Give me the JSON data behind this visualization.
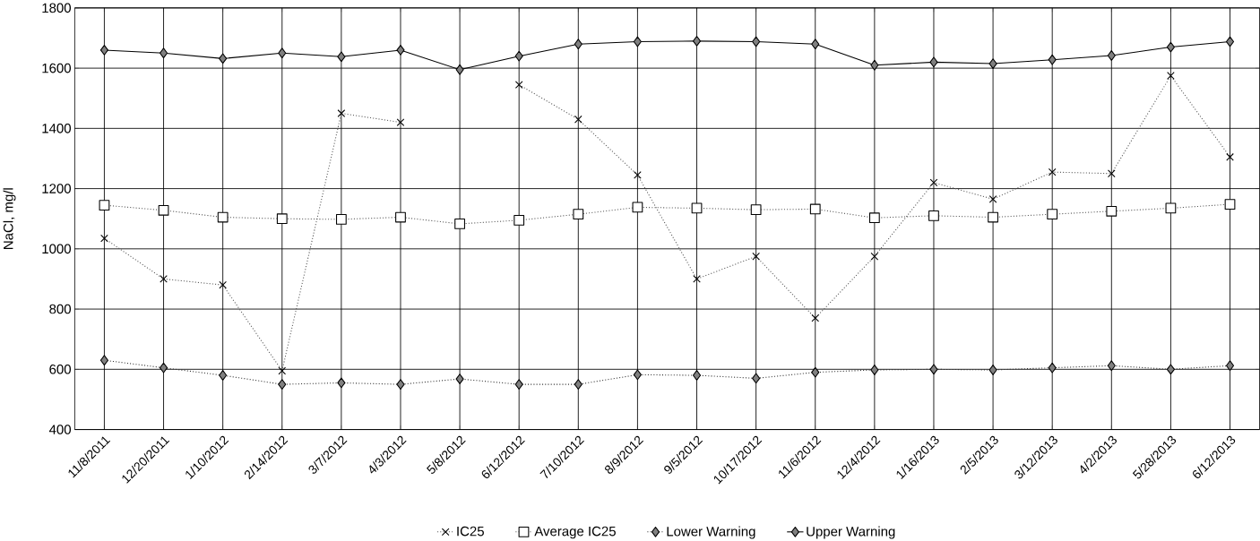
{
  "chart_data": {
    "type": "line",
    "ylabel": "NaCl, mg/l",
    "categories": [
      "11/8/2011",
      "12/20/2011",
      "1/10/2012",
      "2/14/2012",
      "3/7/2012",
      "4/3/2012",
      "5/8/2012",
      "6/12/2012",
      "7/10/2012",
      "8/9/2012",
      "9/5/2012",
      "10/17/2012",
      "11/6/2012",
      "12/4/2012",
      "1/16/2013",
      "2/5/2013",
      "3/12/2013",
      "4/2/2013",
      "5/28/2013",
      "6/12/2013"
    ],
    "series": [
      {
        "name": "IC25",
        "color": "#555555",
        "marker": "cross",
        "line_style": "dotted",
        "values": [
          1035,
          900,
          880,
          595,
          1450,
          1420,
          null,
          1545,
          1430,
          1245,
          900,
          975,
          770,
          975,
          1220,
          1165,
          1255,
          1250,
          1575,
          1305
        ]
      },
      {
        "name": "Average IC25",
        "color": "#555555",
        "marker": "square",
        "line_style": "dotted",
        "values": [
          1145,
          1128,
          1105,
          1100,
          1098,
          1105,
          1083,
          1095,
          1115,
          1138,
          1135,
          1130,
          1132,
          1103,
          1110,
          1105,
          1115,
          1125,
          1135,
          1148
        ]
      },
      {
        "name": "Lower Warning",
        "color": "#333333",
        "marker": "diamond",
        "line_style": "dotted",
        "values": [
          630,
          605,
          580,
          550,
          555,
          550,
          568,
          550,
          550,
          582,
          580,
          570,
          590,
          598,
          600,
          598,
          605,
          612,
          600,
          612
        ]
      },
      {
        "name": "Upper Warning",
        "color": "#000000",
        "marker": "diamond",
        "line_style": "solid",
        "values": [
          1660,
          1650,
          1632,
          1650,
          1638,
          1660,
          1595,
          1640,
          1680,
          1688,
          1690,
          1688,
          1680,
          1610,
          1620,
          1615,
          1628,
          1642,
          1670,
          1688
        ]
      }
    ],
    "ylim": [
      400,
      1800
    ],
    "yticks": [
      400,
      600,
      800,
      1000,
      1200,
      1400,
      1600,
      1800
    ],
    "grid": true,
    "legend": "bottom"
  }
}
